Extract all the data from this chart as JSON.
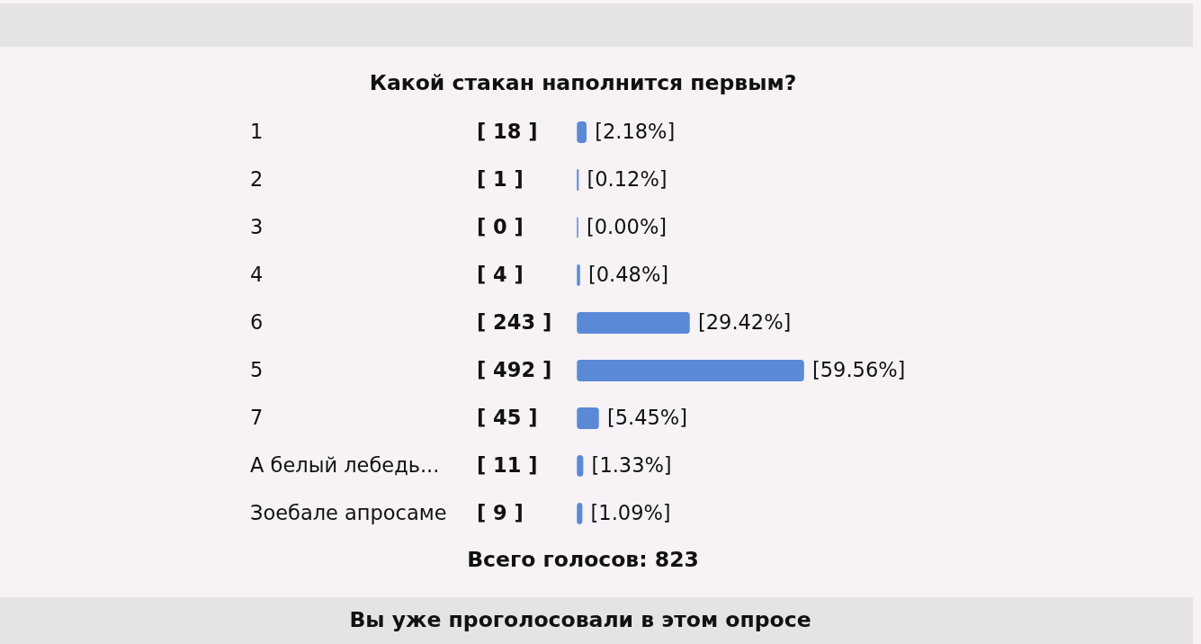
{
  "chart_data": {
    "type": "bar",
    "orientation": "horizontal",
    "title": "Какой стакан наполнится первым?",
    "categories": [
      "1",
      "2",
      "3",
      "4",
      "6",
      "5",
      "7",
      "А белый лебедь...",
      "Зоебале апросаме"
    ],
    "values": [
      2.18,
      0.12,
      0.0,
      0.48,
      29.42,
      59.56,
      5.45,
      1.33,
      1.09
    ],
    "value_labels": [
      "[2.18%]",
      "[0.12%]",
      "[0.00%]",
      "[0.48%]",
      "[29.42%]",
      "[59.56%]",
      "[5.45%]",
      "[1.33%]",
      "[1.09%]"
    ],
    "color": "#5a8ad6",
    "annotations": [
      "[ 18 ]",
      "[ 1 ]",
      "[ 0 ]",
      "[ 4 ]",
      "[ 243 ]",
      "[ 492 ]",
      "[ 45 ]",
      "[ 11 ]",
      "[ 9 ]",
      "Всего голосов: 823",
      "Вы уже проголосовали в этом опросе"
    ]
  }
}
